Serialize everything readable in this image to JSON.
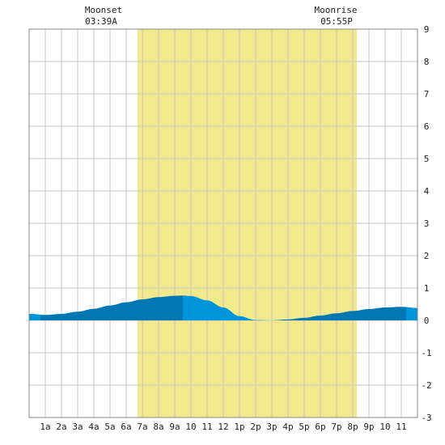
{
  "chart_data": {
    "type": "area",
    "moon_events": [
      {
        "label": "Moonset",
        "time": "03:39A",
        "hour": 3.65
      },
      {
        "label": "Moonrise",
        "time": "05:55P",
        "hour": 17.917
      }
    ],
    "daylight": {
      "start_hour": 6.7,
      "end_hour": 20.25
    },
    "x_ticks": [
      {
        "label": "1a",
        "hour": 1
      },
      {
        "label": "2a",
        "hour": 2
      },
      {
        "label": "3a",
        "hour": 3
      },
      {
        "label": "4a",
        "hour": 4
      },
      {
        "label": "5a",
        "hour": 5
      },
      {
        "label": "6a",
        "hour": 6
      },
      {
        "label": "7a",
        "hour": 7
      },
      {
        "label": "8a",
        "hour": 8
      },
      {
        "label": "9a",
        "hour": 9
      },
      {
        "label": "10",
        "hour": 10
      },
      {
        "label": "11",
        "hour": 11
      },
      {
        "label": "12",
        "hour": 12
      },
      {
        "label": "1p",
        "hour": 13
      },
      {
        "label": "2p",
        "hour": 14
      },
      {
        "label": "3p",
        "hour": 15
      },
      {
        "label": "4p",
        "hour": 16
      },
      {
        "label": "5p",
        "hour": 17
      },
      {
        "label": "6p",
        "hour": 18
      },
      {
        "label": "7p",
        "hour": 19
      },
      {
        "label": "8p",
        "hour": 20
      },
      {
        "label": "9p",
        "hour": 21
      },
      {
        "label": "10",
        "hour": 22
      },
      {
        "label": "11",
        "hour": 23
      }
    ],
    "y_ticks": [
      9,
      8,
      7,
      6,
      5,
      4,
      3,
      2,
      1,
      0,
      -1,
      -2,
      -3
    ],
    "xlim": [
      0,
      24
    ],
    "ylim": [
      -3,
      9
    ],
    "grid": true,
    "series": [
      {
        "x": [
          0,
          1,
          2,
          3,
          4,
          5,
          6,
          7,
          8,
          9,
          9.5,
          10,
          11,
          12,
          13,
          14,
          15,
          16,
          17,
          18,
          19,
          20,
          21,
          22,
          23,
          24
        ],
        "y": [
          0.2,
          0.17,
          0.2,
          0.27,
          0.36,
          0.46,
          0.56,
          0.65,
          0.72,
          0.76,
          0.77,
          0.75,
          0.62,
          0.4,
          0.13,
          0.01,
          0.0,
          0.03,
          0.08,
          0.15,
          0.22,
          0.29,
          0.35,
          0.4,
          0.42,
          0.38
        ]
      }
    ],
    "highlight_range": {
      "start_hour": 9.5,
      "end_hour": 15.1
    },
    "colors": {
      "daylight": "#f2e98c",
      "tide_dark": "#0077b3",
      "tide_light": "#0095da",
      "grid": "#c8c8c8",
      "frame": "#888888"
    }
  }
}
